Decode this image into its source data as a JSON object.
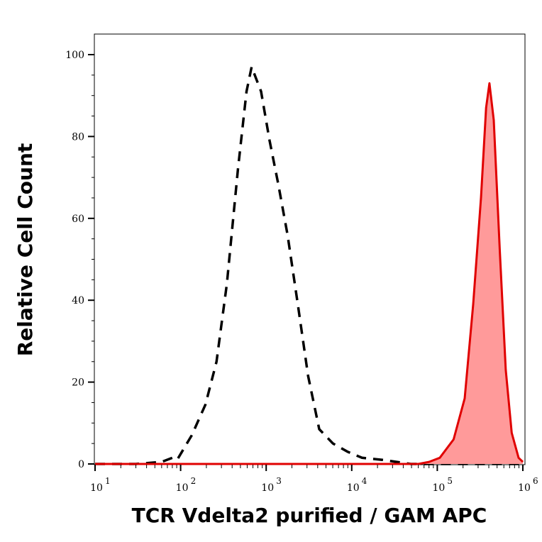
{
  "chart_data": {
    "type": "area",
    "title": "",
    "xlabel": "TCR Vdelta2 purified / GAM APC",
    "ylabel": "Relative Cell Count",
    "xscale": "log",
    "xlim": [
      10,
      1000000
    ],
    "ylim": [
      0,
      105
    ],
    "grid": false,
    "x_ticks": [
      {
        "base": "10",
        "exp": "1",
        "value": 10
      },
      {
        "base": "10",
        "exp": "2",
        "value": 100
      },
      {
        "base": "10",
        "exp": "3",
        "value": 1000
      },
      {
        "base": "10",
        "exp": "4",
        "value": 10000
      },
      {
        "base": "10",
        "exp": "5",
        "value": 100000
      },
      {
        "base": "10",
        "exp": "6",
        "value": 1000000
      }
    ],
    "y_ticks": [
      "0",
      "20",
      "40",
      "60",
      "80",
      "100"
    ],
    "series": [
      {
        "style": "dashed-line",
        "color": "#000000",
        "points": [
          [
            10,
            0
          ],
          [
            30,
            0
          ],
          [
            60,
            0.5
          ],
          [
            80,
            1.5
          ],
          [
            91,
            1
          ],
          [
            135,
            7
          ],
          [
            195,
            14.5
          ],
          [
            263,
            25
          ],
          [
            347,
            44
          ],
          [
            468,
            72
          ],
          [
            589,
            91
          ],
          [
            676,
            97
          ],
          [
            871,
            91
          ],
          [
            1096,
            79
          ],
          [
            1380,
            68.5
          ],
          [
            1778,
            56
          ],
          [
            2344,
            39
          ],
          [
            3090,
            21.5
          ],
          [
            4169,
            8.5
          ],
          [
            6026,
            5
          ],
          [
            8913,
            3
          ],
          [
            13183,
            1.5
          ],
          [
            22909,
            1
          ],
          [
            48978,
            0
          ],
          [
            1000000,
            0
          ]
        ]
      },
      {
        "style": "filled",
        "color": "#e00000",
        "fill": "#ff9a9a",
        "points": [
          [
            10,
            0
          ],
          [
            60000,
            0
          ],
          [
            80000,
            0.5
          ],
          [
            107000,
            1.5
          ],
          [
            155000,
            6
          ],
          [
            209000,
            16
          ],
          [
            263000,
            39
          ],
          [
            324000,
            65
          ],
          [
            372000,
            87
          ],
          [
            407000,
            93
          ],
          [
            457000,
            84
          ],
          [
            537000,
            52.5
          ],
          [
            631000,
            23
          ],
          [
            741000,
            7.6
          ],
          [
            891000,
            1.5
          ],
          [
            1000000,
            0.5
          ]
        ]
      }
    ]
  }
}
